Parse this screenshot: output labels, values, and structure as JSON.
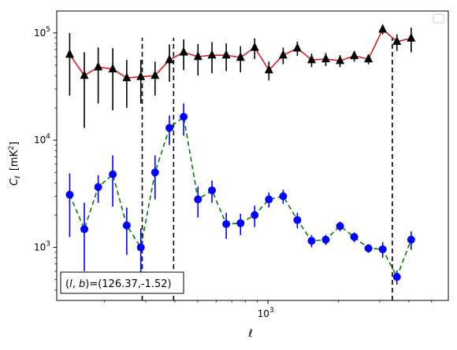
{
  "chart_data": {
    "type": "scatter",
    "title": "",
    "xlabel": "ℓ",
    "ylabel": "C_ℓ  [mK²]",
    "ylabel_main": "C",
    "ylabel_sub": "ℓ",
    "ylabel_unit": "[mK",
    "ylabel_sup": "2",
    "ylabel_close": "]",
    "xscale": "log",
    "yscale": "log",
    "xlim": [
      125,
      5900
    ],
    "ylim": [
      320,
      160000
    ],
    "grid": false,
    "legend": {
      "placement": "top-right",
      "entries": []
    },
    "x_ticks": [
      {
        "value": 1000,
        "base": "10",
        "exp": "3"
      }
    ],
    "y_ticks": [
      {
        "value": 1000,
        "base": "10",
        "exp": "3"
      },
      {
        "value": 10000,
        "base": "10",
        "exp": "4"
      },
      {
        "value": 100000,
        "base": "10",
        "exp": "5"
      }
    ],
    "vlines": [
      290,
      395,
      3400
    ],
    "annotation": "(l, b)=(126.37,-1.52)",
    "annotation_l": "l",
    "annotation_b": "b",
    "annotation_values": "=(126.37,-1.52)",
    "series": [
      {
        "marker": "triangle",
        "marker_color": "#000000",
        "line_color": "#e41a1c",
        "line_style": "solid",
        "errorbar_color": "#000000",
        "points": [
          {
            "x": 142,
            "y": 63000,
            "lo": 26000,
            "hi": 100000
          },
          {
            "x": 164,
            "y": 40000,
            "lo": 13000,
            "hi": 66000
          },
          {
            "x": 188,
            "y": 48000,
            "lo": 22000,
            "hi": 73000
          },
          {
            "x": 217,
            "y": 46000,
            "lo": 19000,
            "hi": 72000
          },
          {
            "x": 249,
            "y": 38000,
            "lo": 20000,
            "hi": 56000
          },
          {
            "x": 286,
            "y": 39000,
            "lo": 22000,
            "hi": 56000
          },
          {
            "x": 329,
            "y": 40000,
            "lo": 26000,
            "hi": 54000
          },
          {
            "x": 379,
            "y": 56000,
            "lo": 35000,
            "hi": 78000
          },
          {
            "x": 436,
            "y": 66000,
            "lo": 45000,
            "hi": 87000
          },
          {
            "x": 502,
            "y": 60000,
            "lo": 40000,
            "hi": 79000
          },
          {
            "x": 576,
            "y": 62000,
            "lo": 42000,
            "hi": 82000
          },
          {
            "x": 663,
            "y": 62000,
            "lo": 44000,
            "hi": 80000
          },
          {
            "x": 763,
            "y": 59000,
            "lo": 43000,
            "hi": 75000
          },
          {
            "x": 877,
            "y": 73000,
            "lo": 57000,
            "hi": 89000
          },
          {
            "x": 1009,
            "y": 45000,
            "lo": 36000,
            "hi": 54000
          },
          {
            "x": 1161,
            "y": 62000,
            "lo": 51000,
            "hi": 73000
          },
          {
            "x": 1335,
            "y": 72000,
            "lo": 61000,
            "hi": 83000
          },
          {
            "x": 1536,
            "y": 56000,
            "lo": 48000,
            "hi": 64000
          },
          {
            "x": 1766,
            "y": 57000,
            "lo": 49000,
            "hi": 65000
          },
          {
            "x": 2032,
            "y": 55000,
            "lo": 48000,
            "hi": 62000
          },
          {
            "x": 2337,
            "y": 61000,
            "lo": 54000,
            "hi": 68000
          },
          {
            "x": 2688,
            "y": 57000,
            "lo": 51000,
            "hi": 63000
          },
          {
            "x": 3092,
            "y": 108000,
            "lo": 97000,
            "hi": 119000
          },
          {
            "x": 3557,
            "y": 83000,
            "lo": 68000,
            "hi": 97000
          },
          {
            "x": 4092,
            "y": 89000,
            "lo": 66000,
            "hi": 112000
          }
        ]
      },
      {
        "marker": "circle",
        "marker_color": "#0000ff",
        "line_color": "#008000",
        "line_style": "dashed",
        "errorbar_color": "#0000ff",
        "points": [
          {
            "x": 142,
            "y": 3100,
            "lo": 1250,
            "hi": 4900
          },
          {
            "x": 164,
            "y": 1480,
            "lo": 600,
            "hi": 2600
          },
          {
            "x": 188,
            "y": 3650,
            "lo": 2600,
            "hi": 4700
          },
          {
            "x": 217,
            "y": 4800,
            "lo": 2400,
            "hi": 7200
          },
          {
            "x": 249,
            "y": 1600,
            "lo": 850,
            "hi": 2350
          },
          {
            "x": 286,
            "y": 1000,
            "lo": 500,
            "hi": 1500
          },
          {
            "x": 329,
            "y": 5000,
            "lo": 2800,
            "hi": 7200
          },
          {
            "x": 379,
            "y": 13000,
            "lo": 9000,
            "hi": 17000
          },
          {
            "x": 436,
            "y": 16500,
            "lo": 11000,
            "hi": 22000
          },
          {
            "x": 502,
            "y": 2800,
            "lo": 1900,
            "hi": 3700
          },
          {
            "x": 576,
            "y": 3400,
            "lo": 2600,
            "hi": 4200
          },
          {
            "x": 663,
            "y": 1650,
            "lo": 1200,
            "hi": 2100
          },
          {
            "x": 763,
            "y": 1680,
            "lo": 1300,
            "hi": 2060
          },
          {
            "x": 877,
            "y": 2000,
            "lo": 1550,
            "hi": 2450
          },
          {
            "x": 1009,
            "y": 2800,
            "lo": 2350,
            "hi": 3250
          },
          {
            "x": 1161,
            "y": 3000,
            "lo": 2550,
            "hi": 3450
          },
          {
            "x": 1335,
            "y": 1800,
            "lo": 1500,
            "hi": 2100
          },
          {
            "x": 1536,
            "y": 1150,
            "lo": 1000,
            "hi": 1300
          },
          {
            "x": 1766,
            "y": 1180,
            "lo": 1050,
            "hi": 1310
          },
          {
            "x": 2032,
            "y": 1580,
            "lo": 1420,
            "hi": 1740
          },
          {
            "x": 2337,
            "y": 1250,
            "lo": 1120,
            "hi": 1380
          },
          {
            "x": 2688,
            "y": 980,
            "lo": 890,
            "hi": 1070
          },
          {
            "x": 3092,
            "y": 960,
            "lo": 800,
            "hi": 1120
          },
          {
            "x": 3557,
            "y": 530,
            "lo": 450,
            "hi": 610
          },
          {
            "x": 4092,
            "y": 1180,
            "lo": 950,
            "hi": 1410
          }
        ]
      }
    ]
  }
}
